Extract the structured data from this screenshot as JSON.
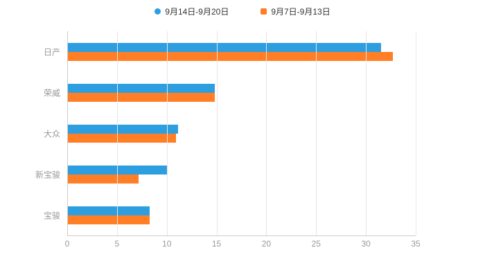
{
  "chart_data": {
    "type": "bar",
    "orientation": "horizontal",
    "title": "",
    "xlabel": "",
    "ylabel": "",
    "grid": true,
    "legend_position": "top-center",
    "categories": [
      "日产",
      "荣威",
      "大众",
      "新宝骏",
      "宝骏"
    ],
    "series": [
      {
        "name": "9月14日-9月20日",
        "color": "#2D9FE0",
        "marker": "circle",
        "values": [
          31.5,
          14.8,
          11.1,
          10.0,
          8.3
        ]
      },
      {
        "name": "9月7日-9月13日",
        "color": "#FF7E26",
        "marker": "square",
        "values": [
          32.7,
          14.8,
          10.9,
          7.2,
          8.3
        ]
      }
    ],
    "xticks": [
      0,
      5,
      10,
      15,
      20,
      25,
      30,
      35
    ],
    "xlim": [
      0,
      35
    ],
    "axis_color": "#cccccc",
    "gridline_color": "#e6e6e6",
    "tick_label_color": "#999999",
    "legend_text_color": "#333333"
  }
}
